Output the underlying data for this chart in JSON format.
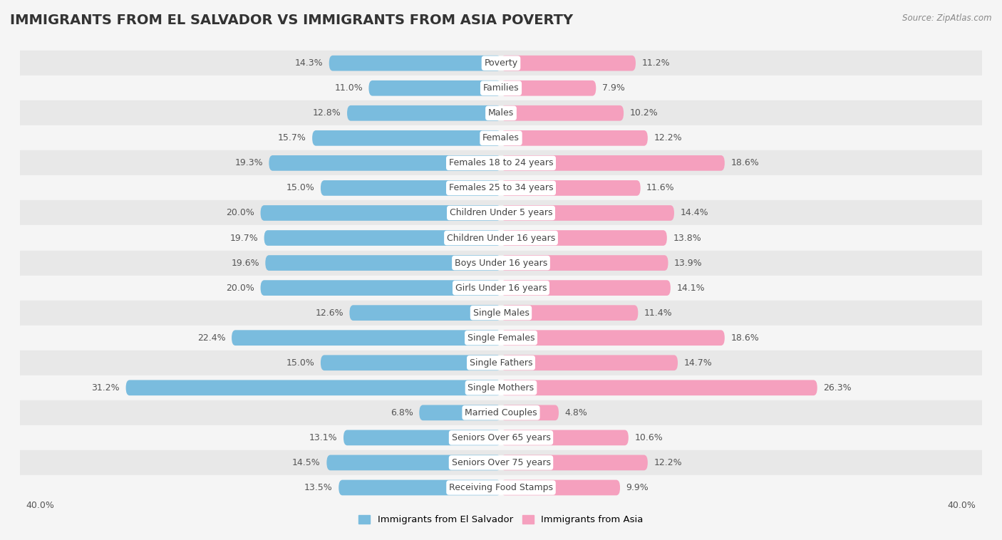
{
  "title": "IMMIGRANTS FROM EL SALVADOR VS IMMIGRANTS FROM ASIA POVERTY",
  "source": "Source: ZipAtlas.com",
  "categories": [
    "Poverty",
    "Families",
    "Males",
    "Females",
    "Females 18 to 24 years",
    "Females 25 to 34 years",
    "Children Under 5 years",
    "Children Under 16 years",
    "Boys Under 16 years",
    "Girls Under 16 years",
    "Single Males",
    "Single Females",
    "Single Fathers",
    "Single Mothers",
    "Married Couples",
    "Seniors Over 65 years",
    "Seniors Over 75 years",
    "Receiving Food Stamps"
  ],
  "el_salvador_values": [
    14.3,
    11.0,
    12.8,
    15.7,
    19.3,
    15.0,
    20.0,
    19.7,
    19.6,
    20.0,
    12.6,
    22.4,
    15.0,
    31.2,
    6.8,
    13.1,
    14.5,
    13.5
  ],
  "asia_values": [
    11.2,
    7.9,
    10.2,
    12.2,
    18.6,
    11.6,
    14.4,
    13.8,
    13.9,
    14.1,
    11.4,
    18.6,
    14.7,
    26.3,
    4.8,
    10.6,
    12.2,
    9.9
  ],
  "el_salvador_color": "#7abcde",
  "asia_color": "#f5a0be",
  "row_color_even": "#e8e8e8",
  "row_color_odd": "#f5f5f5",
  "background_color": "#f5f5f5",
  "xlim": 40.0,
  "legend_labels": [
    "Immigrants from El Salvador",
    "Immigrants from Asia"
  ],
  "bar_height": 0.62,
  "title_fontsize": 14,
  "label_fontsize": 9,
  "value_fontsize": 9
}
